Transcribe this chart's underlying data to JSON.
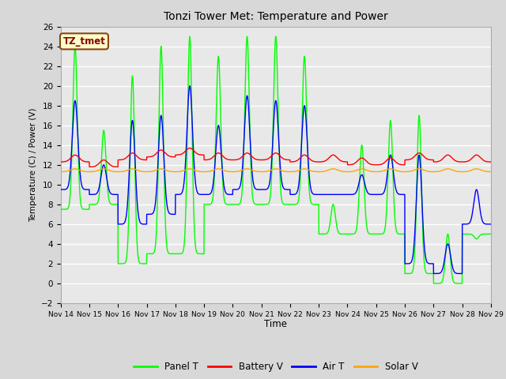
{
  "title": "Tonzi Tower Met: Temperature and Power",
  "xlabel": "Time",
  "ylabel": "Temperature (C) / Power (V)",
  "ylim": [
    -2,
    26
  ],
  "yticks": [
    -2,
    0,
    2,
    4,
    6,
    8,
    10,
    12,
    14,
    16,
    18,
    20,
    22,
    24,
    26
  ],
  "legend_label": "TZ_tmet",
  "series_names": [
    "Panel T",
    "Battery V",
    "Air T",
    "Solar V"
  ],
  "series_colors": [
    "#00FF00",
    "#FF0000",
    "#0000FF",
    "#FFA500"
  ],
  "fig_facecolor": "#D8D8D8",
  "ax_facecolor": "#E8E8E8",
  "grid_color": "#FFFFFF",
  "n_days": 15,
  "start_day": 14
}
